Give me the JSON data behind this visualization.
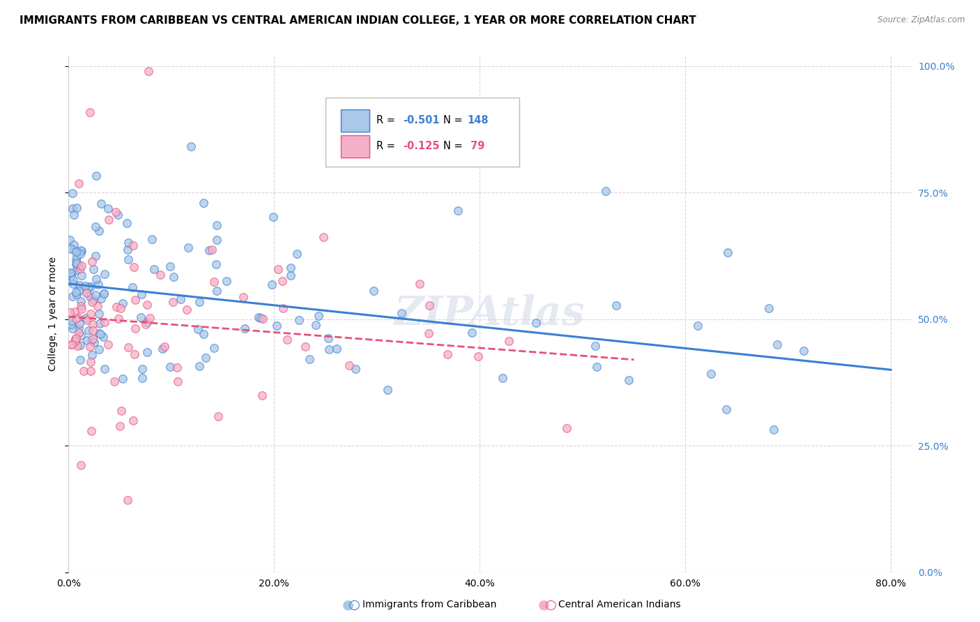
{
  "title": "IMMIGRANTS FROM CARIBBEAN VS CENTRAL AMERICAN INDIAN COLLEGE, 1 YEAR OR MORE CORRELATION CHART",
  "source": "Source: ZipAtlas.com",
  "xlabel_ticks": [
    "0.0%",
    "20.0%",
    "40.0%",
    "60.0%",
    "80.0%"
  ],
  "ylabel_ticks": [
    "0.0%",
    "25.0%",
    "50.0%",
    "75.0%",
    "100.0%"
  ],
  "xlim": [
    0.0,
    0.82
  ],
  "ylim": [
    0.0,
    1.02
  ],
  "legend1_label": "R = -0.501   N = 148",
  "legend2_label": "R = -0.125   N =  79",
  "legend_label1_bottom": "Immigrants from Caribbean",
  "legend_label2_bottom": "Central American Indians",
  "scatter1_color": "#aac8e8",
  "scatter2_color": "#f4b0c8",
  "line1_color": "#3a7fd5",
  "line2_color": "#e8507a",
  "r1": -0.501,
  "n1": 148,
  "r2": -0.125,
  "n2": 79,
  "watermark": "ZIPAtlas",
  "title_fontsize": 11,
  "label_fontsize": 10,
  "tick_fontsize": 10,
  "ylabel": "College, 1 year or more",
  "line1_start_y": 0.57,
  "line1_end_y": 0.4,
  "line1_end_x": 0.8,
  "line2_start_y": 0.505,
  "line2_end_y": 0.42,
  "line2_end_x": 0.55
}
